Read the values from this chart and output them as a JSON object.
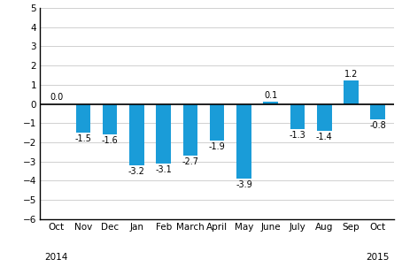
{
  "categories": [
    "Oct",
    "Nov",
    "Dec",
    "Jan",
    "Feb",
    "March",
    "April",
    "May",
    "June",
    "July",
    "Aug",
    "Sep",
    "Oct"
  ],
  "values": [
    0.0,
    -1.5,
    -1.6,
    -3.2,
    -3.1,
    -2.7,
    -1.9,
    -3.9,
    0.1,
    -1.3,
    -1.4,
    1.2,
    -0.8
  ],
  "bar_color": "#1a9cd8",
  "ylim": [
    -6,
    5
  ],
  "yticks": [
    -6,
    -5,
    -4,
    -3,
    -2,
    -1,
    0,
    1,
    2,
    3,
    4,
    5
  ],
  "background_color": "#ffffff",
  "grid_color": "#d0d0d0",
  "zero_line_color": "#000000",
  "spine_color": "#000000",
  "label_fontsize": 7.0,
  "tick_fontsize": 7.5,
  "year_2014": "2014",
  "year_2015": "2015",
  "bar_width": 0.55
}
